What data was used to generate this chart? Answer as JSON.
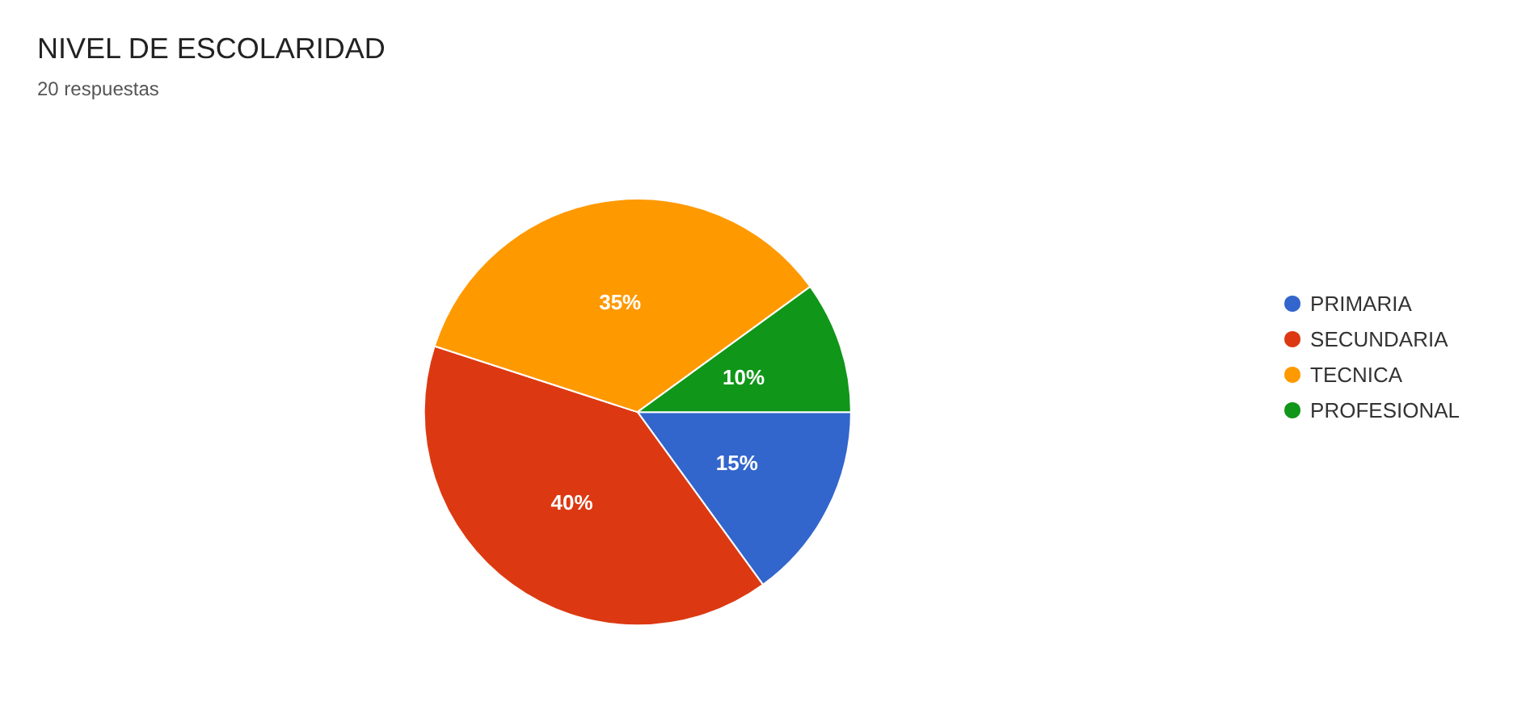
{
  "chart_data": {
    "type": "pie",
    "title": "NIVEL DE ESCOLARIDAD",
    "subtitle": "20 respuestas",
    "categories": [
      "PRIMARIA",
      "SECUNDARIA",
      "TECNICA",
      "PROFESIONAL"
    ],
    "values": [
      15,
      40,
      35,
      10
    ],
    "colors": [
      "#3366cc",
      "#dc3912",
      "#ff9900",
      "#109618"
    ],
    "value_labels": [
      "15%",
      "40%",
      "35%",
      "10%"
    ],
    "legend": "right"
  }
}
